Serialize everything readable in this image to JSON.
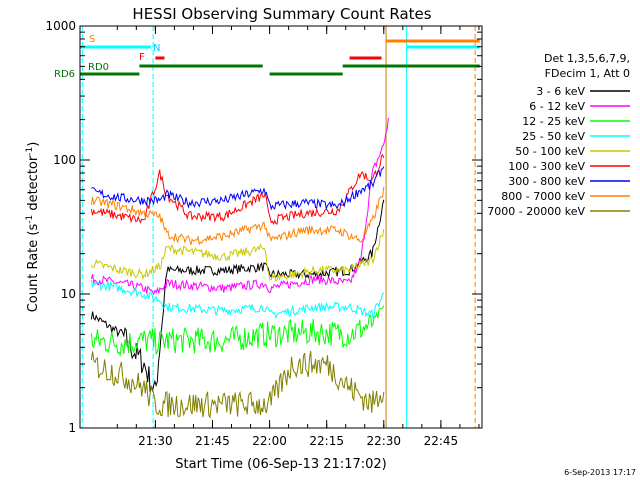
{
  "chart_data": {
    "type": "line",
    "title": "HESSI Observing Summary Count Rates",
    "xlabel": "Start Time (06-Sep-13 21:17:02)",
    "ylabel_main": "Count Rate (s",
    "ylabel_sup1": "-1",
    "ylabel_mid": " detector",
    "ylabel_sup2": "-1",
    "ylabel_end": ")",
    "xlim": [
      21.17,
      22.93
    ],
    "ylim": [
      1,
      1000
    ],
    "yscale": "log",
    "x_ticks": [
      {
        "v": 21.5,
        "label": "21:30"
      },
      {
        "v": 21.75,
        "label": "21:45"
      },
      {
        "v": 22.0,
        "label": "22:00"
      },
      {
        "v": 22.25,
        "label": "22:15"
      },
      {
        "v": 22.5,
        "label": "22:30"
      },
      {
        "v": 22.75,
        "label": "22:45"
      }
    ],
    "y_ticks": [
      {
        "v": 1,
        "label": "1"
      },
      {
        "v": 10,
        "label": "10"
      },
      {
        "v": 100,
        "label": "100"
      },
      {
        "v": 1000,
        "label": "1000"
      }
    ],
    "legend_header1": "Det 1,3,5,6,7,9,",
    "legend_header2": "FDecim 1, Att 0",
    "series": [
      {
        "name": "3 - 6 keV",
        "color": "#000000",
        "x": [
          21.22,
          21.35,
          21.45,
          21.5,
          21.55,
          21.8,
          21.98,
          22.0,
          22.2,
          22.35,
          22.45,
          22.5
        ],
        "y": [
          7,
          5,
          3,
          1.8,
          15,
          15,
          16,
          14,
          14,
          15,
          20,
          50
        ]
      },
      {
        "name": "6 - 12 keV",
        "color": "#ff00ff",
        "x": [
          21.22,
          21.35,
          21.45,
          21.5,
          21.55,
          21.8,
          21.98,
          22.0,
          22.2,
          22.35,
          22.4,
          22.45,
          22.5,
          22.52
        ],
        "y": [
          13,
          12,
          11,
          10,
          12,
          11,
          12,
          11,
          13,
          12,
          18,
          80,
          130,
          200
        ]
      },
      {
        "name": "12 - 25 keV",
        "color": "#00ff00",
        "x": [
          21.22,
          21.35,
          21.45,
          21.52,
          21.55,
          21.8,
          21.98,
          22.0,
          22.2,
          22.35,
          22.45,
          22.5
        ],
        "y": [
          4.5,
          4.3,
          4.5,
          4.4,
          4.5,
          4.5,
          5,
          5,
          5.2,
          5,
          6,
          8
        ]
      },
      {
        "name": "25 - 50 keV",
        "color": "#00ffff",
        "x": [
          21.22,
          21.35,
          21.45,
          21.52,
          21.55,
          21.8,
          21.98,
          22.0,
          22.2,
          22.35,
          22.45,
          22.5
        ],
        "y": [
          12,
          11,
          10,
          9,
          8,
          7.5,
          8,
          7,
          8,
          8,
          7,
          10
        ]
      },
      {
        "name": "50 - 100 keV",
        "color": "#c8c800",
        "x": [
          21.22,
          21.35,
          21.45,
          21.52,
          21.55,
          21.8,
          21.98,
          22.0,
          22.2,
          22.35,
          22.45,
          22.5
        ],
        "y": [
          17,
          15,
          14,
          16,
          22,
          19,
          22,
          13,
          15,
          15,
          18,
          30
        ]
      },
      {
        "name": "100 - 300 keV",
        "color": "#ff0000",
        "x": [
          21.22,
          21.35,
          21.45,
          21.52,
          21.55,
          21.65,
          21.8,
          21.98,
          22.0,
          22.15,
          22.3,
          22.4,
          22.45,
          22.5
        ],
        "y": [
          42,
          38,
          35,
          80,
          55,
          38,
          38,
          55,
          35,
          40,
          42,
          80,
          70,
          110
        ]
      },
      {
        "name": "300 - 800 keV",
        "color": "#0000ff",
        "x": [
          21.22,
          21.35,
          21.45,
          21.52,
          21.55,
          21.65,
          21.8,
          21.98,
          22.0,
          22.15,
          22.3,
          22.4,
          22.45,
          22.5
        ],
        "y": [
          58,
          52,
          50,
          50,
          55,
          48,
          50,
          60,
          45,
          48,
          45,
          60,
          65,
          90
        ]
      },
      {
        "name": "800 - 7000 keV",
        "color": "#ff8000",
        "x": [
          21.22,
          21.35,
          21.45,
          21.52,
          21.55,
          21.65,
          21.8,
          21.98,
          22.0,
          22.15,
          22.3,
          22.4,
          22.45,
          22.5
        ],
        "y": [
          50,
          45,
          40,
          38,
          28,
          25,
          27,
          33,
          25,
          30,
          30,
          25,
          35,
          60
        ]
      },
      {
        "name": "7000 - 20000 keV",
        "color": "#808000",
        "x": [
          21.22,
          21.35,
          21.45,
          21.5,
          21.98,
          22.0,
          22.1,
          22.25,
          22.35,
          22.45,
          22.5
        ],
        "y": [
          3,
          2.5,
          2,
          1.5,
          1.5,
          1.5,
          3,
          3,
          2,
          1.5,
          2
        ]
      }
    ],
    "flag_labels": {
      "s": "S",
      "n": "N",
      "f": "F",
      "rd0": "RD0",
      "rd6": "RD6"
    },
    "timestamp": "6-Sep-2013 17:17"
  }
}
